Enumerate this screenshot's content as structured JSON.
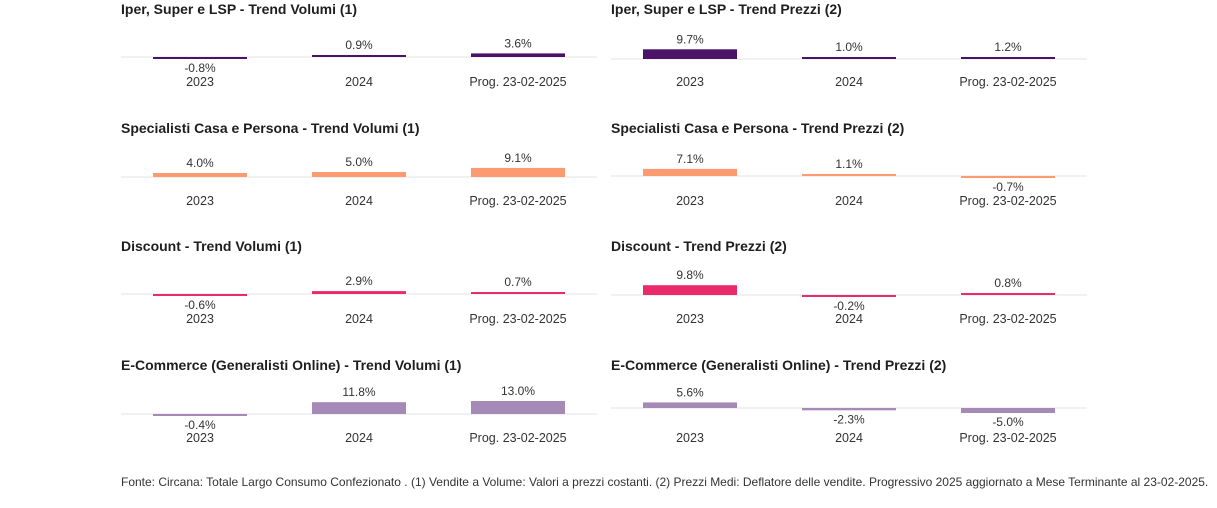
{
  "chart_data": [
    {
      "type": "bar",
      "title": "Iper, Super e LSP - Trend Volumi (1)",
      "categories": [
        "2023",
        "2024",
        "Prog. 23-02-2025"
      ],
      "values": [
        -0.8,
        0.9,
        3.6
      ],
      "value_labels": [
        "-0.8%",
        "0.9%",
        "3.6%"
      ],
      "color": "#4b1367"
    },
    {
      "type": "bar",
      "title": "Iper, Super e LSP - Trend Prezzi (2)",
      "categories": [
        "2023",
        "2024",
        "Prog. 23-02-2025"
      ],
      "values": [
        9.7,
        1.0,
        1.2
      ],
      "value_labels": [
        "9.7%",
        "1.0%",
        "1.2%"
      ],
      "color": "#4b1367"
    },
    {
      "type": "bar",
      "title": "Specialisti Casa e Persona - Trend Volumi (1)",
      "categories": [
        "2023",
        "2024",
        "Prog. 23-02-2025"
      ],
      "values": [
        4.0,
        5.0,
        9.1
      ],
      "value_labels": [
        "4.0%",
        "5.0%",
        "9.1%"
      ],
      "color": "#fc9a72"
    },
    {
      "type": "bar",
      "title": "Specialisti Casa e Persona - Trend Prezzi (2)",
      "categories": [
        "2023",
        "2024",
        "Prog. 23-02-2025"
      ],
      "values": [
        7.1,
        1.1,
        -0.7
      ],
      "value_labels": [
        "7.1%",
        "1.1%",
        "-0.7%"
      ],
      "color": "#fc9a72"
    },
    {
      "type": "bar",
      "title": "Discount - Trend Volumi (1)",
      "categories": [
        "2023",
        "2024",
        "Prog. 23-02-2025"
      ],
      "values": [
        -0.6,
        2.9,
        0.7
      ],
      "value_labels": [
        "-0.6%",
        "2.9%",
        "0.7%"
      ],
      "color": "#ea2a6b"
    },
    {
      "type": "bar",
      "title": "Discount - Trend Prezzi (2)",
      "categories": [
        "2023",
        "2024",
        "Prog. 23-02-2025"
      ],
      "values": [
        9.8,
        -0.2,
        0.8
      ],
      "value_labels": [
        "9.8%",
        "-0.2%",
        "0.8%"
      ],
      "color": "#ea2a6b"
    },
    {
      "type": "bar",
      "title": "E-Commerce (Generalisti Online) - Trend Volumi (1)",
      "categories": [
        "2023",
        "2024",
        "Prog. 23-02-2025"
      ],
      "values": [
        -0.4,
        11.8,
        13.0
      ],
      "value_labels": [
        "-0.4%",
        "11.8%",
        "13.0%"
      ],
      "color": "#a58ab8"
    },
    {
      "type": "bar",
      "title": "E-Commerce (Generalisti Online) - Trend Prezzi (2)",
      "categories": [
        "2023",
        "2024",
        "Prog. 23-02-2025"
      ],
      "values": [
        5.6,
        -2.3,
        -5.0
      ],
      "value_labels": [
        "5.6%",
        "-2.3%",
        "-5.0%"
      ],
      "color": "#a58ab8"
    }
  ],
  "footer": {
    "source": "Fonte: Circana: Totale Largo Consumo Confezionato . (1) Vendite a Volume: Valori a prezzi costanti. (2) Prezzi Medi: Deflatore delle vendite. Progressivo 2025 aggiornato a Mese Terminante al 23-02-2025."
  }
}
